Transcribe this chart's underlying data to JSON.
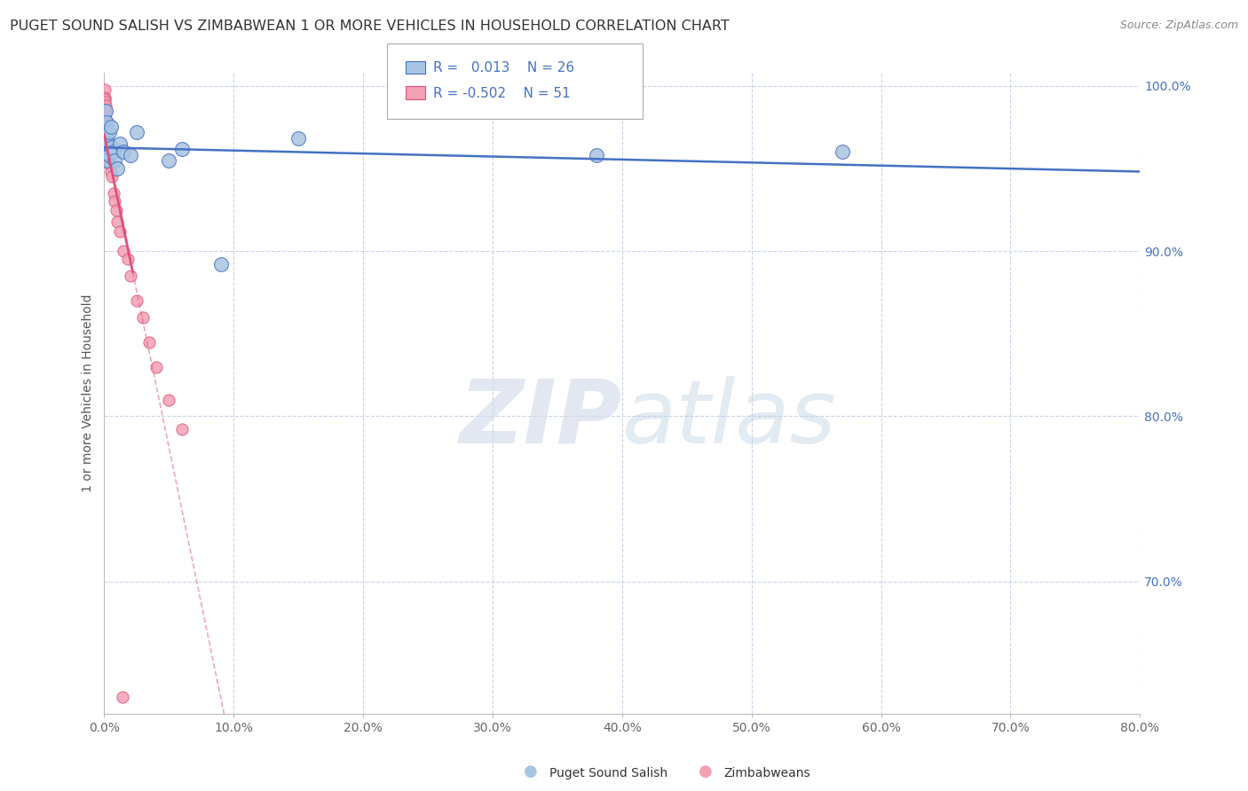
{
  "title": "PUGET SOUND SALISH VS ZIMBABWEAN 1 OR MORE VEHICLES IN HOUSEHOLD CORRELATION CHART",
  "source": "Source: ZipAtlas.com",
  "ylabel": "1 or more Vehicles in Household",
  "xlim": [
    0.0,
    0.8
  ],
  "ylim": [
    0.62,
    1.008
  ],
  "xticks": [
    0.0,
    0.1,
    0.2,
    0.3,
    0.4,
    0.5,
    0.6,
    0.7,
    0.8
  ],
  "xticklabels": [
    "0.0%",
    "10.0%",
    "20.0%",
    "30.0%",
    "40.0%",
    "50.0%",
    "60.0%",
    "70.0%",
    "80.0%"
  ],
  "yticks_right": [
    0.7,
    0.8,
    0.9,
    1.0
  ],
  "yticklabels_right": [
    "70.0%",
    "80.0%",
    "90.0%",
    "100.0%"
  ],
  "blue_color": "#a8c4e0",
  "pink_color": "#f4a0b4",
  "blue_line_color": "#4472c4",
  "pink_line_color": "#e0507a",
  "trend_ext_color": "#e8b0c0",
  "legend_label1": "Puget Sound Salish",
  "legend_label2": "Zimbabweans",
  "watermark_zip": "ZIP",
  "watermark_atlas": "atlas",
  "background_color": "#ffffff",
  "grid_color": "#c8d4e8",
  "blue_x": [
    0.0008,
    0.0008,
    0.001,
    0.0012,
    0.0015,
    0.0018,
    0.002,
    0.0025,
    0.003,
    0.0035,
    0.004,
    0.005,
    0.006,
    0.007,
    0.008,
    0.01,
    0.012,
    0.015,
    0.02,
    0.025,
    0.05,
    0.06,
    0.38,
    0.57,
    0.09,
    0.15
  ],
  "blue_y": [
    0.975,
    0.965,
    0.985,
    0.97,
    0.978,
    0.96,
    0.968,
    0.955,
    0.965,
    0.972,
    0.958,
    0.975,
    0.963,
    0.96,
    0.955,
    0.95,
    0.965,
    0.96,
    0.958,
    0.972,
    0.955,
    0.962,
    0.958,
    0.96,
    0.892,
    0.968
  ],
  "pink_x": [
    0.0003,
    0.0003,
    0.0004,
    0.0004,
    0.0005,
    0.0005,
    0.0006,
    0.0006,
    0.0007,
    0.0007,
    0.0008,
    0.0008,
    0.0009,
    0.0009,
    0.001,
    0.001,
    0.0011,
    0.0011,
    0.0012,
    0.0013,
    0.0014,
    0.0015,
    0.0016,
    0.0017,
    0.0018,
    0.0019,
    0.002,
    0.0022,
    0.0025,
    0.0028,
    0.003,
    0.0035,
    0.004,
    0.0045,
    0.005,
    0.006,
    0.007,
    0.008,
    0.009,
    0.01,
    0.012,
    0.015,
    0.018,
    0.02,
    0.025,
    0.03,
    0.035,
    0.04,
    0.05,
    0.06,
    0.014
  ],
  "pink_y": [
    0.998,
    0.993,
    0.992,
    0.988,
    0.99,
    0.985,
    0.987,
    0.983,
    0.986,
    0.982,
    0.988,
    0.978,
    0.983,
    0.975,
    0.98,
    0.972,
    0.978,
    0.968,
    0.975,
    0.965,
    0.972,
    0.968,
    0.963,
    0.96,
    0.97,
    0.958,
    0.965,
    0.962,
    0.96,
    0.955,
    0.962,
    0.955,
    0.958,
    0.952,
    0.948,
    0.945,
    0.935,
    0.93,
    0.925,
    0.918,
    0.912,
    0.9,
    0.895,
    0.885,
    0.87,
    0.86,
    0.845,
    0.83,
    0.81,
    0.792,
    0.63
  ],
  "blue_marker_size": 130,
  "pink_marker_size": 90,
  "pink_trend_solid_end": 0.022,
  "pink_trend_dash_end": 0.33
}
